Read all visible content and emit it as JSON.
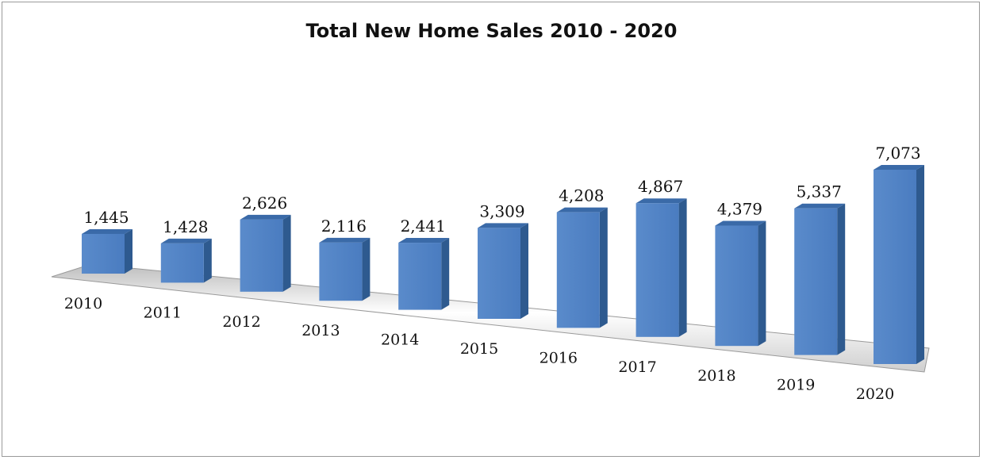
{
  "chart_data": {
    "type": "bar",
    "title": "Total New Home Sales 2010 - 2020",
    "xlabel": "",
    "ylabel": "",
    "categories": [
      "2010",
      "2011",
      "2012",
      "2013",
      "2014",
      "2015",
      "2016",
      "2017",
      "2018",
      "2019",
      "2020"
    ],
    "values": [
      1445,
      1428,
      2626,
      2116,
      2441,
      3309,
      4208,
      4867,
      4379,
      5337,
      7073
    ],
    "value_labels": [
      "1,445",
      "1,428",
      "2,626",
      "2,116",
      "2,441",
      "3,309",
      "4,208",
      "4,867",
      "4,379",
      "5,337",
      "7,073"
    ],
    "ylim": [
      0,
      7500
    ],
    "grid": false,
    "legend": "none",
    "colors": {
      "bar_front": "#4f81c4",
      "bar_side": "#2e5a8f",
      "bar_top": "#3a6aa8",
      "floor": "#dcdcdc"
    }
  }
}
